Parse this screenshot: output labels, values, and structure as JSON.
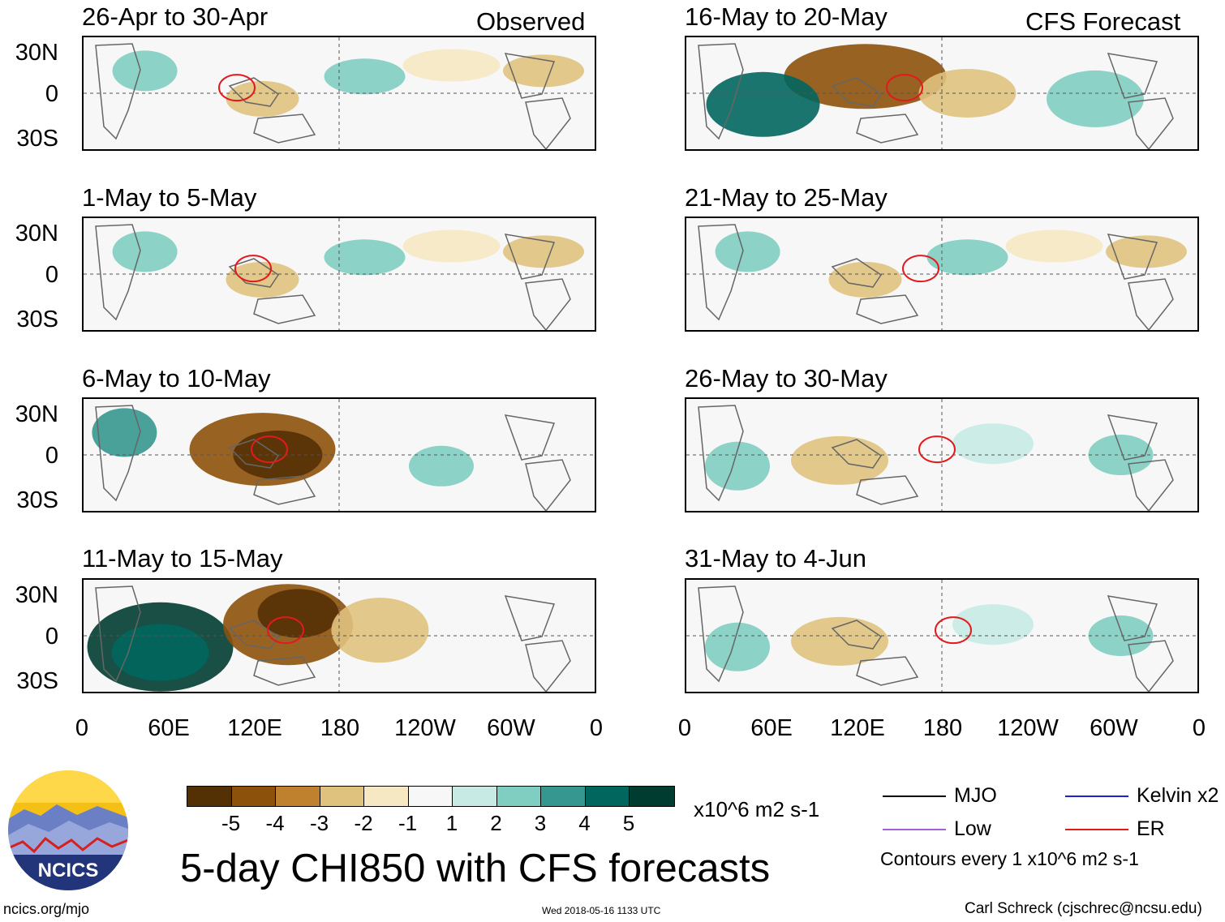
{
  "headers": {
    "observed": "Observed",
    "forecast": "CFS Forecast"
  },
  "panels": [
    {
      "title": "26-Apr to 30-Apr",
      "pattern": "mixed"
    },
    {
      "title": "1-May to 5-May",
      "pattern": "mixed"
    },
    {
      "title": "6-May to 10-May",
      "pattern": "dry-west"
    },
    {
      "title": "11-May to 15-May",
      "pattern": "wet-west"
    },
    {
      "title": "16-May to 20-May",
      "pattern": "dry-center"
    },
    {
      "title": "21-May to 25-May",
      "pattern": "mixed"
    },
    {
      "title": "26-May to 30-May",
      "pattern": "weak"
    },
    {
      "title": "31-May to 4-Jun",
      "pattern": "weak"
    }
  ],
  "lat_labels": [
    "30N",
    "0",
    "30S"
  ],
  "lon_labels": [
    "0",
    "60E",
    "120E",
    "180",
    "120W",
    "60W",
    "0"
  ],
  "colorbar": {
    "colors": [
      "#543005",
      "#8c510a",
      "#bf812d",
      "#dfc27d",
      "#f6e8c3",
      "#f7f7f7",
      "#c7eae5",
      "#80cdc1",
      "#35978f",
      "#01665e",
      "#003c30"
    ],
    "labels": [
      "-5",
      "-4",
      "-3",
      "-2",
      "-1",
      "1",
      "2",
      "3",
      "4",
      "5"
    ]
  },
  "units": "x10^6 m2 s-1",
  "title": "5-day CHI850 with CFS forecasts",
  "legend": [
    {
      "label": "MJO",
      "color": "#000000"
    },
    {
      "label": "Kelvin x2",
      "color": "#1f1fd6"
    },
    {
      "label": "Low",
      "color": "#a65fd6"
    },
    {
      "label": "ER",
      "color": "#e31a1c"
    }
  ],
  "contour_note": "Contours every 1 x10^6 m2 s-1",
  "logo_text": "NCICS",
  "footer": {
    "left": "ncics.org/mjo",
    "timestamp": "Wed 2018-05-16 1133 UTC",
    "author": "Carl Schreck (cjschrec@ncsu.edu)"
  }
}
